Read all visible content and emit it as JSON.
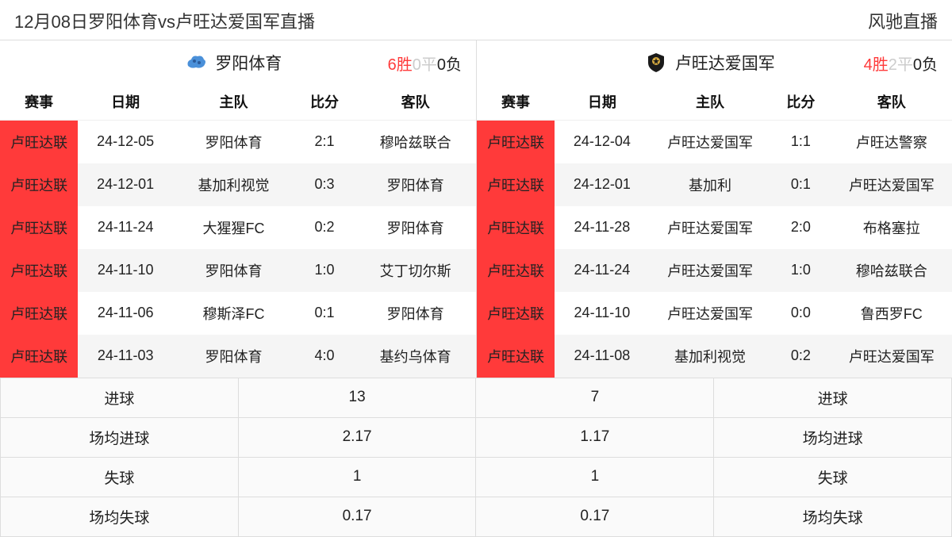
{
  "header": {
    "title": "12月08日罗阳体育vs卢旺达爱国军直播",
    "brand": "风驰直播"
  },
  "columns": {
    "league": "赛事",
    "date": "日期",
    "home": "主队",
    "score": "比分",
    "away": "客队"
  },
  "stat_labels": {
    "goals": "进球",
    "avg_goals": "场均进球",
    "conceded": "失球",
    "avg_conceded": "场均失球"
  },
  "colors": {
    "league_bg": "#ff3a3a",
    "win_text": "#ff3a3a",
    "draw_text": "#cccccc",
    "lose_text": "#222222",
    "row_alt_bg": "#f5f5f5",
    "border": "#dddddd"
  },
  "left": {
    "team_name": "罗阳体育",
    "logo_color": "#4a90d9",
    "record": {
      "win": "6胜",
      "draw": "0平",
      "lose": "0负"
    },
    "matches": [
      {
        "league": "卢旺达联",
        "date": "24-12-05",
        "home": "罗阳体育",
        "score": "2:1",
        "away": "穆哈兹联合"
      },
      {
        "league": "卢旺达联",
        "date": "24-12-01",
        "home": "基加利视觉",
        "score": "0:3",
        "away": "罗阳体育"
      },
      {
        "league": "卢旺达联",
        "date": "24-11-24",
        "home": "大猩猩FC",
        "score": "0:2",
        "away": "罗阳体育"
      },
      {
        "league": "卢旺达联",
        "date": "24-11-10",
        "home": "罗阳体育",
        "score": "1:0",
        "away": "艾丁切尔斯"
      },
      {
        "league": "卢旺达联",
        "date": "24-11-06",
        "home": "穆斯泽FC",
        "score": "0:1",
        "away": "罗阳体育"
      },
      {
        "league": "卢旺达联",
        "date": "24-11-03",
        "home": "罗阳体育",
        "score": "4:0",
        "away": "基约乌体育"
      }
    ],
    "stats": {
      "goals": "13",
      "avg_goals": "2.17",
      "conceded": "1",
      "avg_conceded": "0.17"
    }
  },
  "right": {
    "team_name": "卢旺达爱国军",
    "logo_color": "#d4a940",
    "record": {
      "win": "4胜",
      "draw": "2平",
      "lose": "0负"
    },
    "matches": [
      {
        "league": "卢旺达联",
        "date": "24-12-04",
        "home": "卢旺达爱国军",
        "score": "1:1",
        "away": "卢旺达警察"
      },
      {
        "league": "卢旺达联",
        "date": "24-12-01",
        "home": "基加利",
        "score": "0:1",
        "away": "卢旺达爱国军"
      },
      {
        "league": "卢旺达联",
        "date": "24-11-28",
        "home": "卢旺达爱国军",
        "score": "2:0",
        "away": "布格塞拉"
      },
      {
        "league": "卢旺达联",
        "date": "24-11-24",
        "home": "卢旺达爱国军",
        "score": "1:0",
        "away": "穆哈兹联合"
      },
      {
        "league": "卢旺达联",
        "date": "24-11-10",
        "home": "卢旺达爱国军",
        "score": "0:0",
        "away": "鲁西罗FC"
      },
      {
        "league": "卢旺达联",
        "date": "24-11-08",
        "home": "基加利视觉",
        "score": "0:2",
        "away": "卢旺达爱国军"
      }
    ],
    "stats": {
      "goals": "7",
      "avg_goals": "1.17",
      "conceded": "1",
      "avg_conceded": "0.17"
    }
  }
}
